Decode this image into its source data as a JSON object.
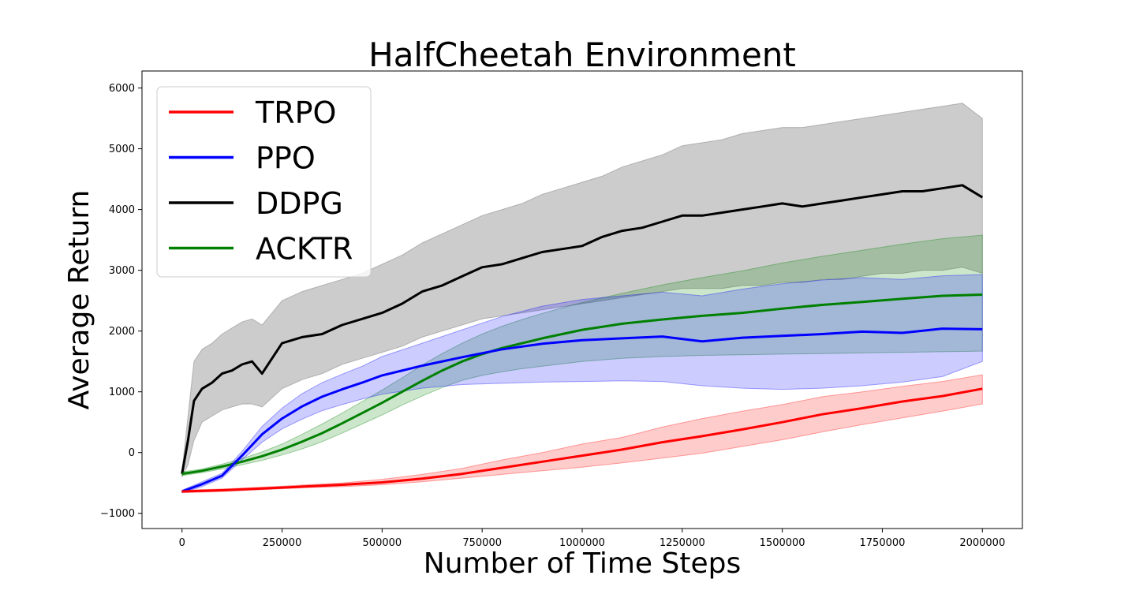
{
  "chart_data": {
    "type": "line",
    "title": "HalfCheetah Environment",
    "xlabel": "Number of Time Steps",
    "ylabel": "Average Return",
    "xlim": [
      -100000,
      2100000
    ],
    "ylim": [
      -1250,
      6280
    ],
    "xticks": [
      0,
      250000,
      500000,
      750000,
      1000000,
      1250000,
      1500000,
      1750000,
      2000000
    ],
    "xtick_labels": [
      "0",
      "250000",
      "500000",
      "750000",
      "1000000",
      "1250000",
      "1500000",
      "1750000",
      "2000000"
    ],
    "yticks": [
      -1000,
      0,
      1000,
      2000,
      3000,
      4000,
      5000,
      6000
    ],
    "ytick_labels": [
      "−1000",
      "0",
      "1000",
      "2000",
      "3000",
      "4000",
      "5000",
      "6000"
    ],
    "grid": false,
    "legend_position": "top-left",
    "series": [
      {
        "name": "TRPO",
        "color": "#ff0000",
        "x": [
          0,
          100000,
          200000,
          300000,
          400000,
          500000,
          600000,
          700000,
          800000,
          900000,
          1000000,
          1100000,
          1200000,
          1300000,
          1400000,
          1500000,
          1600000,
          1700000,
          1800000,
          1900000,
          2000000
        ],
        "y": [
          -640,
          -620,
          -590,
          -560,
          -530,
          -490,
          -430,
          -350,
          -250,
          -150,
          -50,
          50,
          170,
          270,
          380,
          500,
          630,
          730,
          840,
          930,
          1050
        ],
        "lower": [
          -660,
          -640,
          -610,
          -580,
          -560,
          -530,
          -480,
          -420,
          -360,
          -300,
          -240,
          -170,
          -90,
          -10,
          100,
          210,
          340,
          460,
          570,
          680,
          800
        ],
        "upper": [
          -620,
          -600,
          -570,
          -535,
          -500,
          -440,
          -360,
          -260,
          -120,
          0,
          140,
          250,
          420,
          560,
          680,
          790,
          920,
          1000,
          1090,
          1170,
          1280
        ]
      },
      {
        "name": "PPO",
        "color": "#0000ff",
        "x": [
          0,
          50000,
          100000,
          150000,
          200000,
          250000,
          300000,
          350000,
          400000,
          450000,
          500000,
          600000,
          700000,
          800000,
          900000,
          1000000,
          1100000,
          1200000,
          1300000,
          1400000,
          1500000,
          1600000,
          1700000,
          1800000,
          1900000,
          2000000
        ],
        "y": [
          -640,
          -520,
          -380,
          -50,
          300,
          560,
          760,
          920,
          1040,
          1150,
          1270,
          1430,
          1570,
          1700,
          1790,
          1850,
          1880,
          1910,
          1830,
          1890,
          1920,
          1950,
          1990,
          1970,
          2040,
          2030
        ],
        "lower": [
          -660,
          -560,
          -420,
          -120,
          170,
          390,
          550,
          690,
          790,
          880,
          960,
          1060,
          1120,
          1140,
          1160,
          1170,
          1180,
          1170,
          1100,
          1060,
          1040,
          1060,
          1100,
          1160,
          1250,
          1500
        ],
        "upper": [
          -620,
          -480,
          -340,
          20,
          430,
          730,
          970,
          1150,
          1290,
          1420,
          1580,
          1800,
          2020,
          2240,
          2410,
          2520,
          2580,
          2640,
          2580,
          2690,
          2780,
          2840,
          2880,
          2850,
          2910,
          2930
        ]
      },
      {
        "name": "DDPG",
        "color": "#000000",
        "x": [
          0,
          15000,
          30000,
          50000,
          75000,
          100000,
          125000,
          150000,
          175000,
          200000,
          250000,
          300000,
          350000,
          400000,
          450000,
          500000,
          550000,
          600000,
          650000,
          700000,
          750000,
          800000,
          850000,
          900000,
          950000,
          1000000,
          1050000,
          1100000,
          1150000,
          1200000,
          1250000,
          1300000,
          1350000,
          1400000,
          1450000,
          1500000,
          1550000,
          1600000,
          1650000,
          1700000,
          1750000,
          1800000,
          1850000,
          1900000,
          1950000,
          2000000
        ],
        "y": [
          -350,
          200,
          850,
          1050,
          1150,
          1300,
          1350,
          1450,
          1500,
          1300,
          1800,
          1900,
          1950,
          2100,
          2200,
          2300,
          2450,
          2650,
          2750,
          2900,
          3050,
          3100,
          3200,
          3300,
          3350,
          3400,
          3550,
          3650,
          3700,
          3800,
          3900,
          3900,
          3950,
          4000,
          4050,
          4100,
          4050,
          4100,
          4150,
          4200,
          4250,
          4300,
          4300,
          4350,
          4400,
          4200
        ],
        "lower": [
          -400,
          -200,
          200,
          500,
          600,
          700,
          750,
          800,
          800,
          750,
          1050,
          1200,
          1300,
          1450,
          1550,
          1650,
          1750,
          1900,
          2000,
          2100,
          2200,
          2250,
          2300,
          2350,
          2400,
          2450,
          2500,
          2550,
          2600,
          2650,
          2700,
          2700,
          2700,
          2750,
          2750,
          2800,
          2800,
          2850,
          2850,
          2900,
          2950,
          2950,
          3000,
          3000,
          3050,
          2950
        ],
        "upper": [
          -300,
          600,
          1500,
          1700,
          1800,
          1950,
          2050,
          2150,
          2200,
          2100,
          2500,
          2650,
          2750,
          2850,
          2950,
          3100,
          3250,
          3450,
          3600,
          3750,
          3900,
          4000,
          4100,
          4250,
          4350,
          4450,
          4550,
          4700,
          4800,
          4900,
          5050,
          5100,
          5150,
          5250,
          5300,
          5350,
          5350,
          5400,
          5450,
          5500,
          5550,
          5600,
          5650,
          5700,
          5750,
          5500
        ]
      },
      {
        "name": "ACKTR",
        "color": "#008000",
        "x": [
          0,
          50000,
          100000,
          150000,
          200000,
          250000,
          300000,
          350000,
          400000,
          450000,
          500000,
          550000,
          600000,
          650000,
          700000,
          750000,
          800000,
          850000,
          900000,
          950000,
          1000000,
          1100000,
          1200000,
          1300000,
          1400000,
          1500000,
          1600000,
          1700000,
          1800000,
          1900000,
          2000000
        ],
        "y": [
          -350,
          -300,
          -230,
          -150,
          -60,
          50,
          180,
          320,
          480,
          650,
          820,
          1000,
          1180,
          1350,
          1500,
          1620,
          1720,
          1800,
          1880,
          1950,
          2020,
          2120,
          2190,
          2250,
          2300,
          2370,
          2430,
          2480,
          2530,
          2580,
          2600
        ],
        "lower": [
          -380,
          -330,
          -270,
          -200,
          -130,
          -40,
          60,
          180,
          320,
          470,
          620,
          780,
          930,
          1070,
          1190,
          1270,
          1330,
          1380,
          1420,
          1460,
          1500,
          1550,
          1580,
          1600,
          1610,
          1620,
          1630,
          1640,
          1650,
          1660,
          1670
        ],
        "upper": [
          -320,
          -270,
          -190,
          -100,
          10,
          140,
          300,
          470,
          650,
          840,
          1030,
          1230,
          1440,
          1630,
          1800,
          1950,
          2080,
          2190,
          2290,
          2380,
          2470,
          2620,
          2760,
          2880,
          2990,
          3120,
          3230,
          3330,
          3430,
          3520,
          3580
        ]
      }
    ]
  }
}
